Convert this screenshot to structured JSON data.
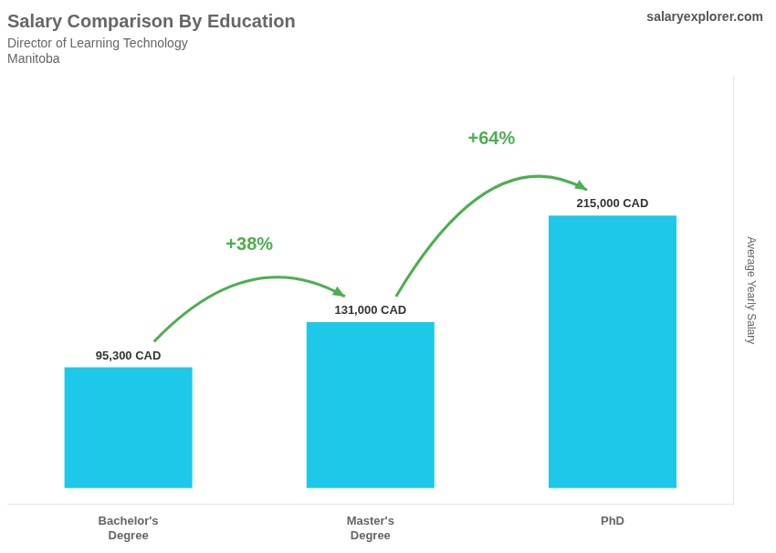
{
  "chart_data": {
    "type": "bar",
    "title": "Salary Comparison By Education",
    "subtitle": "Director of Learning Technology",
    "location": "Manitoba",
    "source": "salaryexplorer.com",
    "y_label": "Average Yearly Salary",
    "categories": [
      "Bachelor's\nDegree",
      "Master's\nDegree",
      "PhD"
    ],
    "values": [
      95300,
      131000,
      215000
    ],
    "value_labels": [
      "95,300 CAD",
      "131,000 CAD",
      "215,000 CAD"
    ],
    "data_labels": true,
    "annotations": [
      "+38%",
      "+64%"
    ],
    "color": "#1ec8e8",
    "ylim": [
      -13000,
      325000
    ],
    "tick_labels": "x",
    "grid": false
  }
}
